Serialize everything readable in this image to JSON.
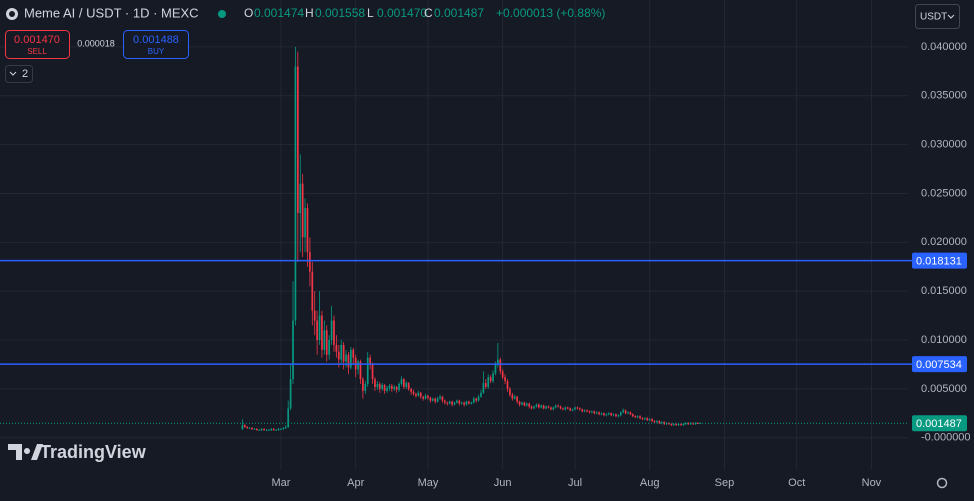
{
  "header": {
    "symbol": "Meme AI / USDT · 1D · MEXC",
    "ohlc": [
      {
        "key": "O",
        "value": "0.001474"
      },
      {
        "key": "H",
        "value": "0.001558"
      },
      {
        "key": "L",
        "value": "0.001470"
      },
      {
        "key": "C",
        "value": "0.001487"
      }
    ],
    "change": "+0.000013 (+0.88%)",
    "currency": "USDT"
  },
  "trade": {
    "sell_price": "0.001470",
    "sell_label": "SELL",
    "spread": "0.000018",
    "buy_price": "0.001488",
    "buy_label": "BUY"
  },
  "indicators_count": "2",
  "logo": "TradingView",
  "chart_data": {
    "type": "candlestick",
    "up_color": "#089981",
    "down_color": "#f23645",
    "grid": true,
    "ylim": [
      -0.0033,
      0.0448
    ],
    "yticks": [
      {
        "value": 0,
        "label": "-0.000000"
      },
      {
        "value": 0.005,
        "label": "0.005000"
      },
      {
        "value": 0.01,
        "label": "0.010000"
      },
      {
        "value": 0.015,
        "label": "0.015000"
      },
      {
        "value": 0.02,
        "label": "0.020000"
      },
      {
        "value": 0.025,
        "label": "0.025000"
      },
      {
        "value": 0.03,
        "label": "0.030000"
      },
      {
        "value": 0.035,
        "label": "0.035000"
      },
      {
        "value": 0.04,
        "label": "0.040000"
      }
    ],
    "hlines": [
      0.018131,
      0.007534
    ],
    "hline_color": "#2962ff",
    "last_price": 0.001487,
    "categories": [
      null,
      null,
      null,
      null,
      null,
      null,
      null,
      null,
      null,
      null,
      null,
      null,
      null,
      null,
      null,
      null,
      "Mar",
      null,
      null,
      null,
      null,
      null,
      null,
      null,
      null,
      null,
      null,
      null,
      null,
      null,
      null,
      null,
      null,
      null,
      null,
      null,
      null,
      null,
      null,
      null,
      null,
      null,
      null,
      null,
      null,
      null,
      null,
      "Apr",
      null,
      null,
      null,
      null,
      null,
      null,
      null,
      null,
      null,
      null,
      null,
      null,
      null,
      null,
      null,
      null,
      null,
      null,
      null,
      null,
      null,
      null,
      null,
      null,
      null,
      null,
      null,
      null,
      null,
      "May",
      null,
      null,
      null,
      null,
      null,
      null,
      null,
      null,
      null,
      null,
      null,
      null,
      null,
      null,
      null,
      null,
      null,
      null,
      null,
      null,
      null,
      null,
      null,
      null,
      null,
      null,
      null,
      null,
      null,
      null,
      "Jun",
      null,
      null,
      null,
      null,
      null,
      null,
      null,
      null,
      null,
      null,
      null,
      null,
      null,
      null,
      null,
      null,
      null,
      null,
      null,
      null,
      null,
      null,
      null,
      null,
      null,
      null,
      null,
      null,
      null,
      "Jul",
      null,
      null,
      null,
      null,
      null,
      null,
      null,
      null,
      null,
      null,
      null,
      null,
      null,
      null,
      null,
      null,
      null,
      null,
      null,
      null,
      null,
      null,
      null,
      null,
      null,
      null,
      null,
      null,
      null,
      null,
      "Aug",
      null,
      null,
      null,
      null,
      null,
      null,
      null,
      null,
      null,
      null,
      null,
      null,
      null,
      null,
      null,
      null,
      null,
      null,
      null,
      null,
      null,
      null,
      null,
      null,
      null,
      null,
      null,
      null,
      null,
      null,
      "Sep",
      null,
      null,
      null,
      null,
      null,
      null,
      null,
      null,
      null,
      null,
      null,
      null,
      null,
      null,
      null,
      null,
      null,
      null,
      null,
      null,
      null,
      null,
      null,
      null,
      null,
      null,
      null,
      null,
      null,
      "Oct",
      null,
      null,
      null,
      null,
      null,
      null,
      null,
      null,
      null,
      null,
      null,
      null,
      null,
      null,
      null,
      null,
      null,
      null,
      null,
      null,
      null,
      null,
      null,
      null,
      null,
      null,
      null,
      null,
      null,
      null,
      "Nov",
      null,
      null,
      null,
      null,
      null,
      null,
      null,
      null,
      null,
      null,
      null,
      null,
      null,
      null
    ],
    "open": [
      0.0009,
      0.0013,
      0.0011,
      0.001,
      0.001,
      0.0009,
      0.0009,
      0.0008,
      0.0008,
      0.0009,
      0.0008,
      0.0008,
      0.0008,
      0.0009,
      0.0008,
      0.0008,
      0.0009,
      0.0009,
      0.001,
      0.0011,
      0.003,
      0.006,
      0.012,
      0.038,
      0.023,
      0.026,
      0.0205,
      0.0235,
      0.019,
      0.017,
      0.013,
      0.012,
      0.01,
      0.0125,
      0.009,
      0.011,
      0.0085,
      0.01,
      0.012,
      0.0095,
      0.0088,
      0.008,
      0.0095,
      0.0078,
      0.0085,
      0.0072,
      0.009,
      0.0082,
      0.007,
      0.0078,
      0.006,
      0.0048,
      0.0055,
      0.0082,
      0.0075,
      0.006,
      0.0052,
      0.0055,
      0.005,
      0.0054,
      0.0048,
      0.0051,
      0.0053,
      0.005,
      0.0052,
      0.0049,
      0.0055,
      0.006,
      0.0052,
      0.0056,
      0.005,
      0.0047,
      0.0045,
      0.0043,
      0.0046,
      0.0042,
      0.004,
      0.0043,
      0.0041,
      0.0038,
      0.004,
      0.0037,
      0.004,
      0.0042,
      0.0038,
      0.0036,
      0.0035,
      0.0037,
      0.0034,
      0.0036,
      0.0038,
      0.0035,
      0.0036,
      0.0034,
      0.0037,
      0.0035,
      0.0036,
      0.004,
      0.0038,
      0.0042,
      0.0046,
      0.0056,
      0.0052,
      0.0062,
      0.0058,
      0.0066,
      0.0075,
      0.008,
      0.0068,
      0.0062,
      0.0058,
      0.005,
      0.0044,
      0.004,
      0.0042,
      0.0037,
      0.0034,
      0.0036,
      0.0033,
      0.0035,
      0.0032,
      0.003,
      0.0032,
      0.0034,
      0.0031,
      0.0033,
      0.003,
      0.0032,
      0.0031,
      0.0029,
      0.0031,
      0.0033,
      0.0032,
      0.003,
      0.0029,
      0.0031,
      0.003,
      0.0028,
      0.0029,
      0.0031,
      0.003,
      0.0029,
      0.0027,
      0.0028,
      0.0027,
      0.0026,
      0.0027,
      0.0025,
      0.0026,
      0.0024,
      0.0025,
      0.0023,
      0.0024,
      0.0025,
      0.0023,
      0.0024,
      0.0022,
      0.0023,
      0.0026,
      0.0028,
      0.0025,
      0.0026,
      0.0024,
      0.0022,
      0.0021,
      0.0022,
      0.002,
      0.0019,
      0.002,
      0.0018,
      0.0019,
      0.0017,
      0.0016,
      0.0017,
      0.0015,
      0.0016,
      0.0014,
      0.0015,
      0.0014,
      0.0013,
      0.0014,
      0.0013,
      0.0014,
      0.0013,
      0.0014,
      0.0015,
      0.0014,
      0.0015,
      0.0014,
      0.0015,
      0.001474,
      null,
      null,
      null,
      null,
      null,
      null,
      null,
      null,
      null,
      null,
      null,
      null,
      null,
      null,
      null,
      null,
      null,
      null,
      null,
      null,
      null,
      null,
      null,
      null,
      null,
      null,
      null,
      null,
      null,
      null,
      null,
      null,
      null,
      null,
      null,
      null,
      null,
      null,
      null,
      null,
      null,
      null,
      null,
      null,
      null,
      null,
      null,
      null,
      null,
      null,
      null,
      null,
      null,
      null,
      null,
      null,
      null,
      null,
      null,
      null,
      null,
      null,
      null,
      null,
      null,
      null,
      null,
      null,
      null,
      null,
      null,
      null,
      null,
      null,
      null,
      null,
      null,
      null,
      null,
      null,
      null,
      null,
      null,
      null,
      null
    ],
    "high": [
      0.0019,
      0.0014,
      0.0012,
      0.0011,
      0.0011,
      0.001,
      0.001,
      0.0009,
      0.001,
      0.001,
      0.0009,
      0.0009,
      0.001,
      0.001,
      0.0009,
      0.001,
      0.001,
      0.0011,
      0.0013,
      0.0038,
      0.0075,
      0.016,
      0.04,
      0.0395,
      0.029,
      0.027,
      0.0245,
      0.024,
      0.0205,
      0.018,
      0.015,
      0.013,
      0.015,
      0.013,
      0.012,
      0.0115,
      0.0105,
      0.0135,
      0.0125,
      0.0105,
      0.0095,
      0.01,
      0.0098,
      0.009,
      0.0088,
      0.0093,
      0.0092,
      0.0085,
      0.008,
      0.008,
      0.0062,
      0.0058,
      0.0088,
      0.0085,
      0.0077,
      0.0062,
      0.0058,
      0.0057,
      0.0056,
      0.0055,
      0.0053,
      0.0055,
      0.0055,
      0.0054,
      0.0053,
      0.0057,
      0.0063,
      0.0061,
      0.0058,
      0.0057,
      0.0051,
      0.0049,
      0.0046,
      0.0048,
      0.0047,
      0.0043,
      0.0045,
      0.0044,
      0.0042,
      0.0041,
      0.0041,
      0.0042,
      0.0044,
      0.0043,
      0.0039,
      0.0037,
      0.0038,
      0.0038,
      0.0037,
      0.0039,
      0.0039,
      0.0037,
      0.0037,
      0.0038,
      0.0038,
      0.0037,
      0.0042,
      0.0041,
      0.0044,
      0.0049,
      0.0068,
      0.006,
      0.0065,
      0.0064,
      0.0069,
      0.0078,
      0.0097,
      0.0082,
      0.007,
      0.0065,
      0.006,
      0.0052,
      0.0046,
      0.0044,
      0.0043,
      0.0038,
      0.0037,
      0.0037,
      0.0036,
      0.0036,
      0.0033,
      0.0033,
      0.0035,
      0.0035,
      0.0034,
      0.0034,
      0.0033,
      0.0033,
      0.0032,
      0.0032,
      0.0034,
      0.0034,
      0.0033,
      0.0031,
      0.0032,
      0.0032,
      0.0031,
      0.003,
      0.0032,
      0.0032,
      0.0031,
      0.003,
      0.0029,
      0.0029,
      0.0028,
      0.0028,
      0.0028,
      0.0027,
      0.0027,
      0.0026,
      0.0026,
      0.0025,
      0.0026,
      0.0026,
      0.0025,
      0.0025,
      0.0024,
      0.0027,
      0.003,
      0.0029,
      0.0027,
      0.0027,
      0.0025,
      0.0023,
      0.0023,
      0.0023,
      0.0021,
      0.0021,
      0.0021,
      0.002,
      0.002,
      0.0018,
      0.0018,
      0.0018,
      0.0017,
      0.0017,
      0.0016,
      0.0016,
      0.0015,
      0.0015,
      0.0015,
      0.0015,
      0.0015,
      0.0015,
      0.0016,
      0.0016,
      0.0016,
      0.0016,
      0.0016,
      0.0016,
      0.001558,
      null,
      null,
      null,
      null,
      null,
      null,
      null,
      null,
      null,
      null,
      null,
      null,
      null,
      null,
      null,
      null,
      null,
      null,
      null,
      null,
      null,
      null,
      null,
      null,
      null,
      null,
      null,
      null,
      null,
      null,
      null,
      null,
      null,
      null,
      null,
      null,
      null,
      null,
      null,
      null,
      null,
      null,
      null,
      null,
      null,
      null,
      null,
      null,
      null,
      null,
      null,
      null,
      null,
      null,
      null,
      null,
      null,
      null,
      null,
      null,
      null,
      null,
      null,
      null,
      null,
      null,
      null,
      null,
      null,
      null,
      null,
      null,
      null,
      null,
      null,
      null,
      null,
      null,
      null,
      null,
      null,
      null,
      null,
      null,
      null
    ],
    "low": [
      0.0008,
      0.001,
      0.0009,
      0.0009,
      0.0008,
      0.0008,
      0.0007,
      0.0007,
      0.0007,
      0.0007,
      0.0007,
      0.0007,
      0.0007,
      0.0007,
      0.0007,
      0.0007,
      0.0008,
      0.0008,
      0.0009,
      0.001,
      0.0028,
      0.0055,
      0.0115,
      0.018,
      0.019,
      0.0185,
      0.019,
      0.0175,
      0.0155,
      0.0115,
      0.0105,
      0.0085,
      0.0095,
      0.0082,
      0.0085,
      0.0078,
      0.008,
      0.0095,
      0.0088,
      0.0082,
      0.0072,
      0.0075,
      0.007,
      0.0072,
      0.0065,
      0.007,
      0.0075,
      0.0062,
      0.0065,
      0.0055,
      0.004,
      0.0045,
      0.0052,
      0.007,
      0.0055,
      0.0048,
      0.0049,
      0.0046,
      0.0048,
      0.0045,
      0.0046,
      0.0048,
      0.0047,
      0.0048,
      0.0046,
      0.0047,
      0.0053,
      0.005,
      0.005,
      0.0048,
      0.0044,
      0.0043,
      0.0041,
      0.0042,
      0.004,
      0.0038,
      0.0039,
      0.0039,
      0.0036,
      0.0037,
      0.0035,
      0.0036,
      0.0039,
      0.0036,
      0.0034,
      0.0033,
      0.0034,
      0.0032,
      0.0033,
      0.0035,
      0.0033,
      0.0034,
      0.0032,
      0.0033,
      0.0034,
      0.0034,
      0.0035,
      0.0036,
      0.0037,
      0.0041,
      0.0045,
      0.005,
      0.005,
      0.0056,
      0.0056,
      0.0064,
      0.0072,
      0.0065,
      0.006,
      0.0055,
      0.0047,
      0.0042,
      0.0038,
      0.0039,
      0.0035,
      0.0032,
      0.0033,
      0.0032,
      0.0032,
      0.003,
      0.0029,
      0.0029,
      0.0031,
      0.003,
      0.003,
      0.0029,
      0.0029,
      0.003,
      0.0028,
      0.0028,
      0.003,
      0.0031,
      0.0029,
      0.0028,
      0.0028,
      0.0029,
      0.0027,
      0.0027,
      0.0028,
      0.0029,
      0.0028,
      0.0026,
      0.0026,
      0.0026,
      0.0025,
      0.0025,
      0.0024,
      0.0024,
      0.0023,
      0.0023,
      0.0022,
      0.0022,
      0.0023,
      0.0022,
      0.0022,
      0.0021,
      0.0021,
      0.0022,
      0.0025,
      0.0024,
      0.0024,
      0.0023,
      0.0021,
      0.002,
      0.002,
      0.0019,
      0.0018,
      0.0018,
      0.0017,
      0.0017,
      0.0016,
      0.0015,
      0.0015,
      0.0014,
      0.0014,
      0.0013,
      0.0013,
      0.0013,
      0.0012,
      0.0012,
      0.0012,
      0.0012,
      0.0012,
      0.0012,
      0.0013,
      0.0013,
      0.0013,
      0.0013,
      0.0013,
      0.0014,
      0.00147,
      null,
      null,
      null,
      null,
      null,
      null,
      null,
      null,
      null,
      null,
      null,
      null,
      null,
      null,
      null,
      null,
      null,
      null,
      null,
      null,
      null,
      null,
      null,
      null,
      null,
      null,
      null,
      null,
      null,
      null,
      null,
      null,
      null,
      null,
      null,
      null,
      null,
      null,
      null,
      null,
      null,
      null,
      null,
      null,
      null,
      null,
      null,
      null,
      null,
      null,
      null,
      null,
      null,
      null,
      null,
      null,
      null,
      null,
      null,
      null,
      null,
      null,
      null,
      null,
      null,
      null,
      null,
      null,
      null,
      null,
      null,
      null,
      null,
      null,
      null,
      null,
      null,
      null,
      null,
      null,
      null,
      null,
      null,
      null,
      null
    ],
    "close": [
      0.0013,
      0.0011,
      0.001,
      0.001,
      0.0009,
      0.0009,
      0.0008,
      0.0008,
      0.0009,
      0.0008,
      0.0008,
      0.0008,
      0.0009,
      0.0008,
      0.0008,
      0.0009,
      0.0009,
      0.001,
      0.0011,
      0.003,
      0.006,
      0.012,
      0.038,
      0.023,
      0.026,
      0.0205,
      0.0235,
      0.019,
      0.017,
      0.013,
      0.012,
      0.01,
      0.0125,
      0.009,
      0.011,
      0.0085,
      0.01,
      0.012,
      0.0095,
      0.0088,
      0.008,
      0.0095,
      0.0078,
      0.0085,
      0.0072,
      0.009,
      0.0082,
      0.007,
      0.0078,
      0.006,
      0.0048,
      0.0055,
      0.0082,
      0.0075,
      0.006,
      0.0052,
      0.0055,
      0.005,
      0.0054,
      0.0048,
      0.0051,
      0.0053,
      0.005,
      0.0052,
      0.0049,
      0.0055,
      0.006,
      0.0052,
      0.0056,
      0.005,
      0.0047,
      0.0045,
      0.0043,
      0.0046,
      0.0042,
      0.004,
      0.0043,
      0.0041,
      0.0038,
      0.004,
      0.0037,
      0.004,
      0.0042,
      0.0038,
      0.0036,
      0.0035,
      0.0037,
      0.0034,
      0.0036,
      0.0038,
      0.0035,
      0.0036,
      0.0034,
      0.0037,
      0.0035,
      0.0036,
      0.004,
      0.0038,
      0.0042,
      0.0046,
      0.0056,
      0.0052,
      0.0062,
      0.0058,
      0.0066,
      0.0075,
      0.008,
      0.0068,
      0.0062,
      0.0058,
      0.005,
      0.0044,
      0.004,
      0.0042,
      0.0037,
      0.0034,
      0.0036,
      0.0033,
      0.0035,
      0.0032,
      0.003,
      0.0032,
      0.0034,
      0.0031,
      0.0033,
      0.003,
      0.0032,
      0.0031,
      0.0029,
      0.0031,
      0.0033,
      0.0032,
      0.003,
      0.0029,
      0.0031,
      0.003,
      0.0028,
      0.0029,
      0.0031,
      0.003,
      0.0029,
      0.0027,
      0.0028,
      0.0027,
      0.0026,
      0.0027,
      0.0025,
      0.0026,
      0.0024,
      0.0025,
      0.0023,
      0.0024,
      0.0025,
      0.0023,
      0.0024,
      0.0022,
      0.0023,
      0.0026,
      0.0028,
      0.0025,
      0.0026,
      0.0024,
      0.0022,
      0.0021,
      0.0022,
      0.002,
      0.0019,
      0.002,
      0.0018,
      0.0019,
      0.0017,
      0.0016,
      0.0017,
      0.0015,
      0.0016,
      0.0014,
      0.0015,
      0.0014,
      0.0013,
      0.0014,
      0.0013,
      0.0014,
      0.0013,
      0.0014,
      0.0015,
      0.0014,
      0.0015,
      0.0014,
      0.0015,
      0.001474,
      0.001487,
      null,
      null,
      null,
      null,
      null,
      null,
      null,
      null,
      null,
      null,
      null,
      null,
      null,
      null,
      null,
      null,
      null,
      null,
      null,
      null,
      null,
      null,
      null,
      null,
      null,
      null,
      null,
      null,
      null,
      null,
      null,
      null,
      null,
      null,
      null,
      null,
      null,
      null,
      null,
      null,
      null,
      null,
      null,
      null,
      null,
      null,
      null,
      null,
      null,
      null,
      null,
      null,
      null,
      null,
      null,
      null,
      null,
      null,
      null,
      null,
      null,
      null,
      null,
      null,
      null,
      null,
      null,
      null,
      null,
      null,
      null,
      null,
      null,
      null,
      null,
      null,
      null,
      null,
      null,
      null,
      null,
      null,
      null,
      null,
      null
    ]
  }
}
